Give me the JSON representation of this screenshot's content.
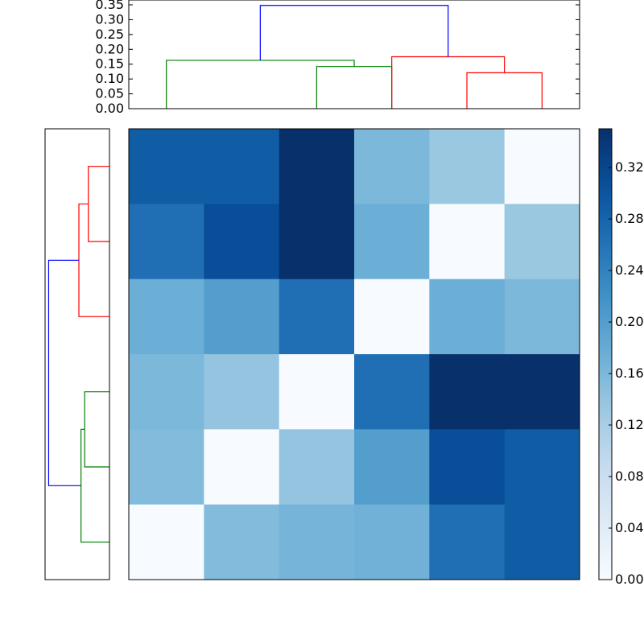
{
  "chart_data": [
    {
      "type": "dendrogram",
      "orientation": "top",
      "ylim": [
        0,
        0.35
      ],
      "yticks": [
        "0.00",
        "0.05",
        "0.10",
        "0.15",
        "0.20",
        "0.25",
        "0.30",
        "0.35"
      ],
      "colors": {
        "cluster_a": "#008000",
        "cluster_b": "#ff0000",
        "root": "#0000ff"
      },
      "links": [
        {
          "cluster": "cluster_a",
          "left_leaf": 3,
          "right_leaf": 4,
          "height": 0.142
        },
        {
          "cluster": "cluster_a",
          "left_leaf": 1,
          "right_leaf": 3.5,
          "height": 0.163
        },
        {
          "cluster": "cluster_b",
          "left_leaf": 5,
          "right_leaf": 6,
          "height": 0.121
        },
        {
          "cluster": "cluster_b",
          "left_leaf": 4,
          "right_leaf": 5.5,
          "height": 0.175
        },
        {
          "cluster": "root",
          "left_leaf": 2.25,
          "right_leaf": 4.75,
          "height": 0.348
        }
      ],
      "leaf_count": 6
    },
    {
      "type": "dendrogram",
      "orientation": "left",
      "colors": {
        "cluster_a": "#008000",
        "cluster_b": "#ff0000",
        "root": "#0000ff"
      },
      "links": [
        {
          "cluster": "cluster_b",
          "top_leaf": 1,
          "bottom_leaf": 2,
          "height": 0.121
        },
        {
          "cluster": "cluster_b",
          "top_leaf": 1.5,
          "bottom_leaf": 3,
          "height": 0.175
        },
        {
          "cluster": "cluster_a",
          "top_leaf": 4,
          "bottom_leaf": 5,
          "height": 0.142
        },
        {
          "cluster": "cluster_a",
          "top_leaf": 4.5,
          "bottom_leaf": 6,
          "height": 0.163
        },
        {
          "cluster": "root",
          "top_leaf": 2.25,
          "bottom_leaf": 5.25,
          "height": 0.348
        }
      ],
      "xlim": [
        0,
        0.35
      ],
      "leaf_count": 6
    },
    {
      "type": "heatmap",
      "rows": 6,
      "cols": 6,
      "values": [
        [
          0.29,
          0.29,
          0.35,
          0.16,
          0.135,
          0.0
        ],
        [
          0.265,
          0.31,
          0.35,
          0.175,
          0.0,
          0.135
        ],
        [
          0.175,
          0.2,
          0.265,
          0.0,
          0.175,
          0.16
        ],
        [
          0.16,
          0.14,
          0.0,
          0.265,
          0.35,
          0.35
        ],
        [
          0.155,
          0.0,
          0.14,
          0.2,
          0.31,
          0.29
        ],
        [
          0.0,
          0.155,
          0.165,
          0.17,
          0.265,
          0.29
        ]
      ],
      "vmin": 0,
      "vmax": 0.35,
      "colormap": "Blues",
      "colorbar_ticks": [
        "0.00",
        "0.04",
        "0.08",
        "0.12",
        "0.16",
        "0.20",
        "0.24",
        "0.28",
        "0.32"
      ]
    }
  ]
}
